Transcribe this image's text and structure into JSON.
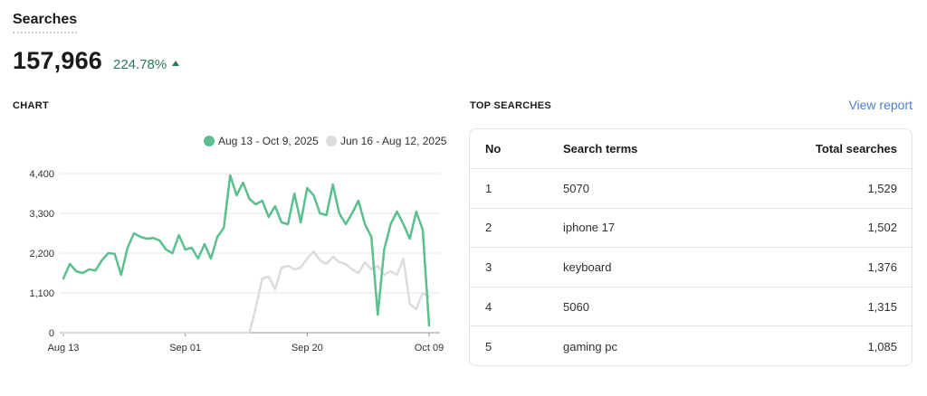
{
  "header": {
    "title": "Searches"
  },
  "metric": {
    "value": "157,966",
    "change": "224.78%",
    "trend_icon": "arrow-up-icon"
  },
  "chart_section": {
    "label": "CHART"
  },
  "top_section": {
    "label": "TOP SEARCHES",
    "view_report": "View report"
  },
  "colors": {
    "current": "#5bbf8e",
    "previous": "#dcdcdc",
    "positive": "#2c7a56",
    "link": "#4f7fcf"
  },
  "chart_data": {
    "type": "line",
    "x": [
      "Aug 13",
      "Aug 14",
      "Aug 15",
      "Aug 16",
      "Aug 17",
      "Aug 18",
      "Aug 19",
      "Aug 20",
      "Aug 21",
      "Aug 22",
      "Aug 23",
      "Aug 24",
      "Aug 25",
      "Aug 26",
      "Aug 27",
      "Aug 28",
      "Aug 29",
      "Aug 30",
      "Aug 31",
      "Sep 01",
      "Sep 02",
      "Sep 03",
      "Sep 04",
      "Sep 05",
      "Sep 06",
      "Sep 07",
      "Sep 08",
      "Sep 09",
      "Sep 10",
      "Sep 11",
      "Sep 12",
      "Sep 13",
      "Sep 14",
      "Sep 15",
      "Sep 16",
      "Sep 17",
      "Sep 18",
      "Sep 19",
      "Sep 20",
      "Sep 21",
      "Sep 22",
      "Sep 23",
      "Sep 24",
      "Sep 25",
      "Sep 26",
      "Sep 27",
      "Sep 28",
      "Sep 29",
      "Sep 30",
      "Oct 01",
      "Oct 02",
      "Oct 03",
      "Oct 04",
      "Oct 05",
      "Oct 06",
      "Oct 07",
      "Oct 08",
      "Oct 09"
    ],
    "series": [
      {
        "name": "Aug 13 - Oct 9, 2025",
        "values": [
          1500,
          1900,
          1700,
          1650,
          1750,
          1720,
          2000,
          2200,
          2180,
          1600,
          2350,
          2750,
          2650,
          2600,
          2620,
          2550,
          2300,
          2200,
          2700,
          2300,
          2350,
          2050,
          2450,
          2050,
          2650,
          2900,
          4350,
          3800,
          4150,
          3700,
          3550,
          3650,
          3200,
          3500,
          3050,
          3000,
          3850,
          3050,
          4000,
          3800,
          3300,
          3250,
          4100,
          3300,
          3000,
          3300,
          3650,
          3000,
          2650,
          500,
          2300,
          3000,
          3350,
          3000,
          2600,
          3350,
          2850,
          200
        ]
      },
      {
        "name": "Jun 16 - Aug 12, 2025",
        "values": [
          0,
          0,
          0,
          0,
          0,
          0,
          0,
          0,
          0,
          0,
          0,
          0,
          0,
          0,
          0,
          0,
          0,
          0,
          0,
          0,
          0,
          0,
          0,
          0,
          0,
          0,
          0,
          0,
          0,
          0,
          700,
          1500,
          1550,
          1200,
          1800,
          1850,
          1750,
          1800,
          2050,
          2250,
          2000,
          1900,
          2100,
          1950,
          1900,
          1750,
          1650,
          1950,
          1750,
          1850,
          1600,
          1700,
          1600,
          2050,
          800,
          650,
          1100,
          1000
        ]
      }
    ],
    "legend": [
      "Aug 13 - Oct 9, 2025",
      "Jun 16 - Aug 12, 2025"
    ],
    "legend_position": "top-right",
    "x_ticks": [
      "Aug 13",
      "Sep 01",
      "Sep 20",
      "Oct 09"
    ],
    "y_ticks": [
      "0",
      "1,100",
      "2,200",
      "3,300",
      "4,400"
    ],
    "ylim": [
      0,
      4400
    ],
    "grid": true
  },
  "table": {
    "headers": {
      "no": "No",
      "term": "Search terms",
      "total": "Total searches"
    },
    "rows": [
      {
        "no": "1",
        "term": "5070",
        "total": "1,529"
      },
      {
        "no": "2",
        "term": "iphone 17",
        "total": "1,502"
      },
      {
        "no": "3",
        "term": "keyboard",
        "total": "1,376"
      },
      {
        "no": "4",
        "term": "5060",
        "total": "1,315"
      },
      {
        "no": "5",
        "term": "gaming pc",
        "total": "1,085"
      }
    ]
  }
}
